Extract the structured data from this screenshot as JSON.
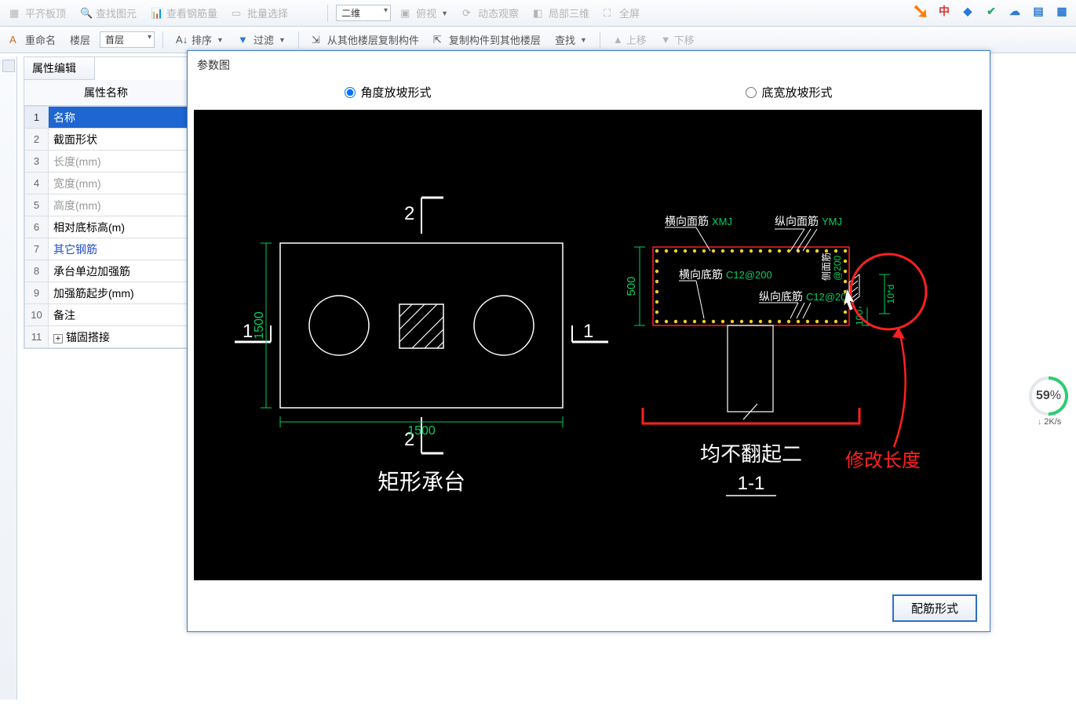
{
  "toolbar1": {
    "items": [
      "平齐板顶",
      "查找图元",
      "查看钢筋量",
      "批量选择"
    ],
    "dropdown3d": "二维",
    "items2": [
      "俯视",
      "动态观察",
      "局部三维",
      "全屏"
    ]
  },
  "toolbar2": {
    "rename": "重命名",
    "floor_label": "楼层",
    "floor_value": "首层",
    "sort": "排序",
    "filter": "过滤",
    "copy_from": "从其他楼层复制构件",
    "copy_to": "复制构件到其他楼层",
    "find": "查找",
    "up": "上移",
    "down": "下移"
  },
  "prop": {
    "tab": "属性编辑",
    "header": "属性名称",
    "rows": [
      {
        "n": "1",
        "label": "名称",
        "sel": true
      },
      {
        "n": "2",
        "label": "截面形状"
      },
      {
        "n": "3",
        "label": "长度(mm)",
        "gray": true
      },
      {
        "n": "4",
        "label": "宽度(mm)",
        "gray": true
      },
      {
        "n": "5",
        "label": "高度(mm)",
        "gray": true
      },
      {
        "n": "6",
        "label": "相对底标高(m)"
      },
      {
        "n": "7",
        "label": "其它钢筋",
        "blue": true
      },
      {
        "n": "8",
        "label": "承台单边加强筋"
      },
      {
        "n": "9",
        "label": "加强筋起步(mm)"
      },
      {
        "n": "10",
        "label": "备注"
      },
      {
        "n": "11",
        "label": "锚固搭接",
        "plus": true
      }
    ]
  },
  "dialog": {
    "title": "参数图",
    "radio1": "角度放坡形式",
    "radio2": "底宽放坡形式",
    "button": "配筋形式"
  },
  "diagram": {
    "left": {
      "title": "矩形承台",
      "dim_w": "1500",
      "dim_h": "1500",
      "sec1": "1",
      "sec2": "2"
    },
    "right": {
      "title": "均不翻起二",
      "subtitle": "1-1",
      "dim_h": "500",
      "dim_100": "100",
      "dim_10d": "10*d",
      "lbl_top_h": "横向面筋",
      "lbl_top_h_code": "XMJ",
      "lbl_top_v": "纵向面筋",
      "lbl_top_v_code": "YMJ",
      "lbl_bot_h": "横向底筋",
      "lbl_bot_h_code": "C12@200",
      "lbl_bot_v": "纵向底筋",
      "lbl_bot_v_code": "C12@200",
      "lbl_side": "侧面筋",
      "lbl_side_code": "@200",
      "annotation": "修改长度"
    }
  },
  "gauge": {
    "value": "59",
    "pct": "%",
    "rate": "2K/s"
  },
  "colors": {
    "green": "#00d060",
    "yellow": "#f5d020",
    "red": "#ff2020",
    "white": "#ffffff"
  }
}
